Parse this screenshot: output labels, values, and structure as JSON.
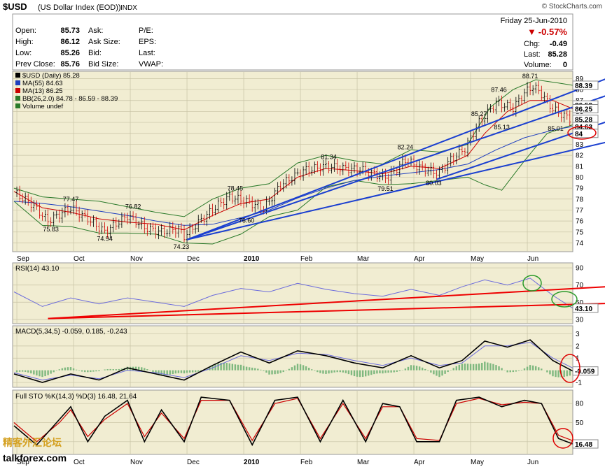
{
  "header": {
    "symbol": "$USD",
    "name": "(US Dollar Index (EOD))",
    "exchange": "INDX",
    "watermark": "© StockCharts.com",
    "date": "Friday   25-Jun-2010",
    "change_pct": "-0.57%",
    "chg_label": "Chg:",
    "chg": "-0.49",
    "last_label": "Last:",
    "last": "85.28",
    "volume_label": "Volume:",
    "volume": "0"
  },
  "quote": [
    {
      "label": "Open:",
      "value": "85.73",
      "label2": "Ask:",
      "value2": "",
      "label3": "P/E:"
    },
    {
      "label": "High:",
      "value": "86.12",
      "label2": "Ask Size:",
      "value2": "",
      "label3": "EPS:"
    },
    {
      "label": "Low:",
      "value": "85.26",
      "label2": "Bid:",
      "value2": "",
      "label3": "Last:"
    },
    {
      "label": "Prev Close:",
      "value": "85.76",
      "label2": "Bid Size:",
      "value2": "",
      "label3": "VWAP:"
    }
  ],
  "legend": [
    {
      "text": "$USD (Daily) 85.28",
      "color": "#000000"
    },
    {
      "text": "MA(55) 84.63",
      "color": "#1f3fbf"
    },
    {
      "text": "MA(13) 86.25",
      "color": "#cc0000"
    },
    {
      "text": "BB(26,2.0) 84.78 - 86.59 - 88.39",
      "color": "#2a7a2a"
    },
    {
      "text": "Volume undef",
      "color": "#2a7a2a"
    }
  ],
  "colors": {
    "panel_bg": "#f1edd2",
    "up": "#000000",
    "down": "#cc0000",
    "ma55": "#1f3fbf",
    "ma13": "#cc0000",
    "bb": "#2a7a2a",
    "trend": "#1a3fd0",
    "rsi": "#6b6bdc",
    "macd_hist": "#7fb87f",
    "sto_k": "#000000",
    "sto_d": "#cc0000"
  },
  "chart_data": {
    "type": "line",
    "x_axis": [
      "Sep",
      "Oct",
      "Nov",
      "Dec",
      "2010",
      "Feb",
      "Mar",
      "Apr",
      "May",
      "Jun"
    ],
    "price": {
      "ylim": [
        73.2,
        89.6
      ],
      "ticks": [
        74,
        75,
        76,
        77,
        78,
        79,
        80,
        81,
        82,
        83,
        84,
        85,
        86,
        87,
        88,
        89
      ],
      "labels": [
        {
          "text": "77.47",
          "value": 77.47,
          "month": 1.0
        },
        {
          "text": "76.82",
          "value": 76.82,
          "month": 2.1
        },
        {
          "text": "75.83",
          "value": 75.83,
          "month": 0.65
        },
        {
          "text": "74.94",
          "value": 74.94,
          "month": 1.6
        },
        {
          "text": "74.23",
          "value": 74.23,
          "month": 2.95
        },
        {
          "text": "78.45",
          "value": 78.45,
          "month": 3.9
        },
        {
          "text": "76.60",
          "value": 76.6,
          "month": 4.1
        },
        {
          "text": "81.34",
          "value": 81.34,
          "month": 5.55
        },
        {
          "text": "79.51",
          "value": 79.51,
          "month": 6.55
        },
        {
          "text": "82.24",
          "value": 82.24,
          "month": 6.9
        },
        {
          "text": "80.03",
          "value": 80.03,
          "month": 7.4
        },
        {
          "text": "85.27",
          "value": 85.27,
          "month": 8.2
        },
        {
          "text": "87.46",
          "value": 87.46,
          "month": 8.55
        },
        {
          "text": "85.13",
          "value": 85.13,
          "month": 8.6
        },
        {
          "text": "88.71",
          "value": 88.71,
          "month": 9.1
        },
        {
          "text": "85.01",
          "value": 85.01,
          "month": 9.55
        }
      ],
      "right_boxes": [
        {
          "text": "88.39",
          "value": 88.39
        },
        {
          "text": "86.59",
          "value": 86.59
        },
        {
          "text": "86.25",
          "value": 86.25
        },
        {
          "text": "85.28",
          "value": 85.28
        },
        {
          "text": "84.63",
          "value": 84.63
        },
        {
          "text": "84",
          "value": 84.0
        }
      ],
      "close_path": [
        [
          0,
          78.6
        ],
        [
          0.3,
          77.6
        ],
        [
          0.6,
          76.0
        ],
        [
          1.0,
          77.2
        ],
        [
          1.3,
          76.2
        ],
        [
          1.6,
          75.0
        ],
        [
          2.0,
          76.5
        ],
        [
          2.3,
          75.4
        ],
        [
          2.6,
          75.0
        ],
        [
          2.9,
          75.3
        ],
        [
          3.0,
          74.6
        ],
        [
          3.3,
          76.1
        ],
        [
          3.6,
          77.5
        ],
        [
          3.8,
          78.2
        ],
        [
          4.1,
          77.8
        ],
        [
          4.4,
          77.1
        ],
        [
          4.7,
          79.3
        ],
        [
          5.1,
          80.6
        ],
        [
          5.5,
          81.0
        ],
        [
          5.8,
          80.8
        ],
        [
          6.1,
          80.7
        ],
        [
          6.4,
          80.2
        ],
        [
          6.6,
          80.0
        ],
        [
          6.9,
          81.6
        ],
        [
          7.1,
          81.0
        ],
        [
          7.3,
          80.6
        ],
        [
          7.5,
          80.4
        ],
        [
          7.7,
          81.6
        ],
        [
          7.95,
          82.6
        ],
        [
          8.2,
          85.0
        ],
        [
          8.5,
          86.8
        ],
        [
          8.8,
          86.3
        ],
        [
          9.0,
          87.7
        ],
        [
          9.15,
          88.3
        ],
        [
          9.3,
          87.6
        ],
        [
          9.5,
          86.2
        ],
        [
          9.7,
          85.6
        ],
        [
          9.85,
          85.28
        ]
      ],
      "ma13_path": [
        [
          0,
          78.7
        ],
        [
          0.5,
          77.2
        ],
        [
          1.0,
          76.8
        ],
        [
          1.5,
          76.2
        ],
        [
          2.0,
          75.9
        ],
        [
          2.5,
          75.7
        ],
        [
          3.0,
          75.2
        ],
        [
          3.5,
          76.5
        ],
        [
          4.0,
          77.6
        ],
        [
          4.5,
          78.0
        ],
        [
          5.0,
          80.0
        ],
        [
          5.5,
          80.8
        ],
        [
          6.0,
          80.6
        ],
        [
          6.5,
          80.3
        ],
        [
          7.0,
          81.0
        ],
        [
          7.5,
          80.8
        ],
        [
          8.0,
          82.0
        ],
        [
          8.3,
          84.0
        ],
        [
          8.7,
          86.0
        ],
        [
          9.1,
          87.0
        ],
        [
          9.5,
          87.0
        ],
        [
          9.85,
          86.25
        ]
      ],
      "ma55_path": [
        [
          0,
          77.8
        ],
        [
          0.5,
          77.6
        ],
        [
          1.0,
          77.3
        ],
        [
          1.5,
          76.9
        ],
        [
          2.0,
          76.5
        ],
        [
          2.5,
          76.0
        ],
        [
          3.0,
          75.6
        ],
        [
          3.5,
          75.7
        ],
        [
          4.0,
          76.3
        ],
        [
          4.5,
          77.0
        ],
        [
          5.0,
          78.1
        ],
        [
          5.5,
          79.0
        ],
        [
          6.0,
          79.7
        ],
        [
          6.5,
          80.1
        ],
        [
          7.0,
          80.4
        ],
        [
          7.5,
          80.7
        ],
        [
          8.0,
          81.2
        ],
        [
          8.5,
          82.5
        ],
        [
          9.0,
          83.6
        ],
        [
          9.5,
          84.3
        ],
        [
          9.85,
          84.63
        ]
      ],
      "bb_upper": [
        [
          0,
          79.0
        ],
        [
          0.5,
          78.2
        ],
        [
          1.0,
          78.0
        ],
        [
          1.5,
          77.8
        ],
        [
          2.0,
          77.3
        ],
        [
          2.5,
          76.8
        ],
        [
          3.0,
          76.4
        ],
        [
          3.5,
          78.0
        ],
        [
          4.0,
          79.0
        ],
        [
          4.5,
          79.4
        ],
        [
          5.0,
          81.3
        ],
        [
          5.5,
          82.0
        ],
        [
          6.0,
          81.5
        ],
        [
          6.5,
          81.2
        ],
        [
          7.0,
          82.5
        ],
        [
          7.5,
          82.3
        ],
        [
          8.0,
          83.0
        ],
        [
          8.4,
          86.4
        ],
        [
          8.8,
          88.0
        ],
        [
          9.2,
          88.9
        ],
        [
          9.6,
          88.6
        ],
        [
          9.85,
          88.39
        ]
      ],
      "bb_lower": [
        [
          0,
          77.8
        ],
        [
          0.5,
          75.6
        ],
        [
          1.0,
          75.5
        ],
        [
          1.5,
          74.9
        ],
        [
          2.0,
          74.9
        ],
        [
          2.5,
          74.8
        ],
        [
          3.0,
          74.0
        ],
        [
          3.5,
          73.9
        ],
        [
          4.0,
          74.8
        ],
        [
          4.5,
          76.4
        ],
        [
          5.0,
          77.0
        ],
        [
          5.5,
          79.1
        ],
        [
          6.0,
          79.7
        ],
        [
          6.5,
          79.3
        ],
        [
          7.0,
          79.4
        ],
        [
          7.5,
          79.7
        ],
        [
          8.0,
          80.0
        ],
        [
          8.3,
          79.3
        ],
        [
          8.6,
          78.8
        ],
        [
          9.0,
          81.5
        ],
        [
          9.4,
          84.0
        ],
        [
          9.85,
          84.78
        ]
      ],
      "trendlines": [
        {
          "from": [
            3.05,
            74.3
          ],
          "to": [
            10.7,
            89.5
          ]
        },
        {
          "from": [
            3.05,
            74.3
          ],
          "to": [
            10.7,
            87.9
          ]
        },
        {
          "from": [
            7.45,
            79.8
          ],
          "to": [
            10.7,
            85.5
          ]
        },
        {
          "from": [
            3.05,
            74.3
          ],
          "to": [
            10.7,
            83.5
          ]
        }
      ]
    },
    "rsi": {
      "title": "RSI(14) 43.10",
      "ylim": [
        25,
        95
      ],
      "ticks": [
        90,
        70,
        50,
        30
      ],
      "right_box": "43.10",
      "path": [
        [
          0,
          62
        ],
        [
          0.5,
          45
        ],
        [
          1.0,
          55
        ],
        [
          1.5,
          48
        ],
        [
          2.0,
          55
        ],
        [
          2.5,
          50
        ],
        [
          3.0,
          45
        ],
        [
          3.5,
          58
        ],
        [
          4.0,
          66
        ],
        [
          4.5,
          62
        ],
        [
          5.0,
          72
        ],
        [
          5.5,
          65
        ],
        [
          6.0,
          60
        ],
        [
          6.5,
          57
        ],
        [
          7.0,
          65
        ],
        [
          7.5,
          58
        ],
        [
          7.9,
          68
        ],
        [
          8.3,
          76
        ],
        [
          8.7,
          70
        ],
        [
          9.1,
          78
        ],
        [
          9.5,
          58
        ],
        [
          9.85,
          43.1
        ]
      ],
      "trendlines": [
        {
          "from": [
            0.6,
            31
          ],
          "to": [
            10.7,
            69
          ]
        },
        {
          "from": [
            0.6,
            31
          ],
          "to": [
            10.7,
            49
          ]
        }
      ]
    },
    "macd": {
      "title": "MACD(5,34,5) -0.059, 0.185, -0.243",
      "ylim": [
        -1.4,
        3.6
      ],
      "ticks": [
        3,
        2,
        1,
        -1
      ],
      "right_box": "-0.059",
      "macd_path": [
        [
          0,
          -0.3
        ],
        [
          0.5,
          -1.0
        ],
        [
          1.0,
          -0.3
        ],
        [
          1.5,
          -0.8
        ],
        [
          2.0,
          0.2
        ],
        [
          2.5,
          -0.3
        ],
        [
          3.0,
          -0.8
        ],
        [
          3.5,
          0.4
        ],
        [
          4.0,
          1.5
        ],
        [
          4.5,
          0.6
        ],
        [
          5.0,
          1.6
        ],
        [
          5.5,
          1.2
        ],
        [
          6.0,
          0.6
        ],
        [
          6.5,
          0.2
        ],
        [
          7.0,
          1.2
        ],
        [
          7.5,
          0.2
        ],
        [
          7.9,
          0.8
        ],
        [
          8.3,
          2.4
        ],
        [
          8.7,
          1.9
        ],
        [
          9.1,
          2.5
        ],
        [
          9.5,
          0.8
        ],
        [
          9.85,
          -0.059
        ]
      ],
      "signal_path": [
        [
          0,
          -0.2
        ],
        [
          0.5,
          -0.8
        ],
        [
          1.0,
          -0.4
        ],
        [
          1.5,
          -0.7
        ],
        [
          2.0,
          0.0
        ],
        [
          2.5,
          -0.2
        ],
        [
          3.0,
          -0.6
        ],
        [
          3.5,
          0.2
        ],
        [
          4.0,
          1.2
        ],
        [
          4.5,
          0.8
        ],
        [
          5.0,
          1.4
        ],
        [
          5.5,
          1.3
        ],
        [
          6.0,
          0.8
        ],
        [
          6.5,
          0.4
        ],
        [
          7.0,
          1.0
        ],
        [
          7.5,
          0.4
        ],
        [
          7.9,
          0.6
        ],
        [
          8.3,
          2.0
        ],
        [
          8.7,
          2.0
        ],
        [
          9.1,
          2.3
        ],
        [
          9.5,
          1.0
        ],
        [
          9.85,
          0.185
        ]
      ]
    },
    "sto": {
      "title": "Full STO %K(14,3) %D(3) 16.48, 21.64",
      "ylim": [
        0,
        100
      ],
      "ticks": [
        80,
        50,
        20
      ],
      "right_box": "16.48",
      "k_path": [
        [
          0,
          45
        ],
        [
          0.4,
          15
        ],
        [
          0.8,
          55
        ],
        [
          1.0,
          75
        ],
        [
          1.3,
          20
        ],
        [
          1.6,
          60
        ],
        [
          2.0,
          85
        ],
        [
          2.3,
          20
        ],
        [
          2.6,
          70
        ],
        [
          3.0,
          20
        ],
        [
          3.3,
          90
        ],
        [
          3.8,
          85
        ],
        [
          4.2,
          15
        ],
        [
          4.6,
          85
        ],
        [
          5.0,
          90
        ],
        [
          5.4,
          20
        ],
        [
          5.8,
          85
        ],
        [
          6.2,
          20
        ],
        [
          6.5,
          80
        ],
        [
          6.8,
          75
        ],
        [
          7.1,
          20
        ],
        [
          7.5,
          20
        ],
        [
          7.8,
          85
        ],
        [
          8.2,
          90
        ],
        [
          8.6,
          75
        ],
        [
          9.0,
          85
        ],
        [
          9.3,
          80
        ],
        [
          9.6,
          25
        ],
        [
          9.85,
          16.48
        ]
      ],
      "d_path": [
        [
          0,
          50
        ],
        [
          0.4,
          20
        ],
        [
          0.8,
          50
        ],
        [
          1.0,
          70
        ],
        [
          1.3,
          28
        ],
        [
          1.6,
          55
        ],
        [
          2.0,
          80
        ],
        [
          2.3,
          28
        ],
        [
          2.6,
          65
        ],
        [
          3.0,
          25
        ],
        [
          3.3,
          85
        ],
        [
          3.8,
          85
        ],
        [
          4.2,
          22
        ],
        [
          4.6,
          80
        ],
        [
          5.0,
          88
        ],
        [
          5.4,
          25
        ],
        [
          5.8,
          80
        ],
        [
          6.2,
          25
        ],
        [
          6.5,
          75
        ],
        [
          6.8,
          75
        ],
        [
          7.1,
          25
        ],
        [
          7.5,
          22
        ],
        [
          7.8,
          80
        ],
        [
          8.2,
          88
        ],
        [
          8.6,
          78
        ],
        [
          9.0,
          82
        ],
        [
          9.3,
          80
        ],
        [
          9.6,
          30
        ],
        [
          9.85,
          21.64
        ]
      ]
    }
  },
  "footer_brand": "精客外汇论坛",
  "footer_site": "talkforex.com"
}
